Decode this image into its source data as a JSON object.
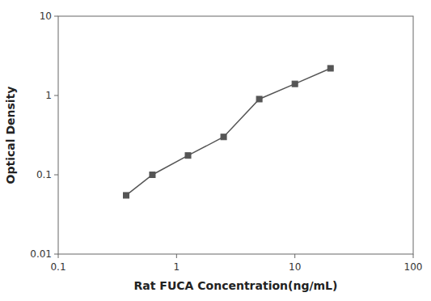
{
  "chart_data": {
    "type": "line",
    "x": [
      0.375,
      0.625,
      1.25,
      2.5,
      5,
      10,
      20
    ],
    "values": [
      0.055,
      0.1,
      0.175,
      0.3,
      0.9,
      1.4,
      2.2
    ],
    "color": "#555555",
    "marker": "square",
    "xlabel": "Rat FUCA Concentration(ng/mL)",
    "ylabel": "Optical Density",
    "xlim": [
      0.1,
      100
    ],
    "ylim": [
      0.01,
      10
    ],
    "xticks": [
      0.1,
      1,
      10,
      100
    ],
    "yticks": [
      0.01,
      0.1,
      1,
      10
    ],
    "log": true,
    "grid": false
  }
}
